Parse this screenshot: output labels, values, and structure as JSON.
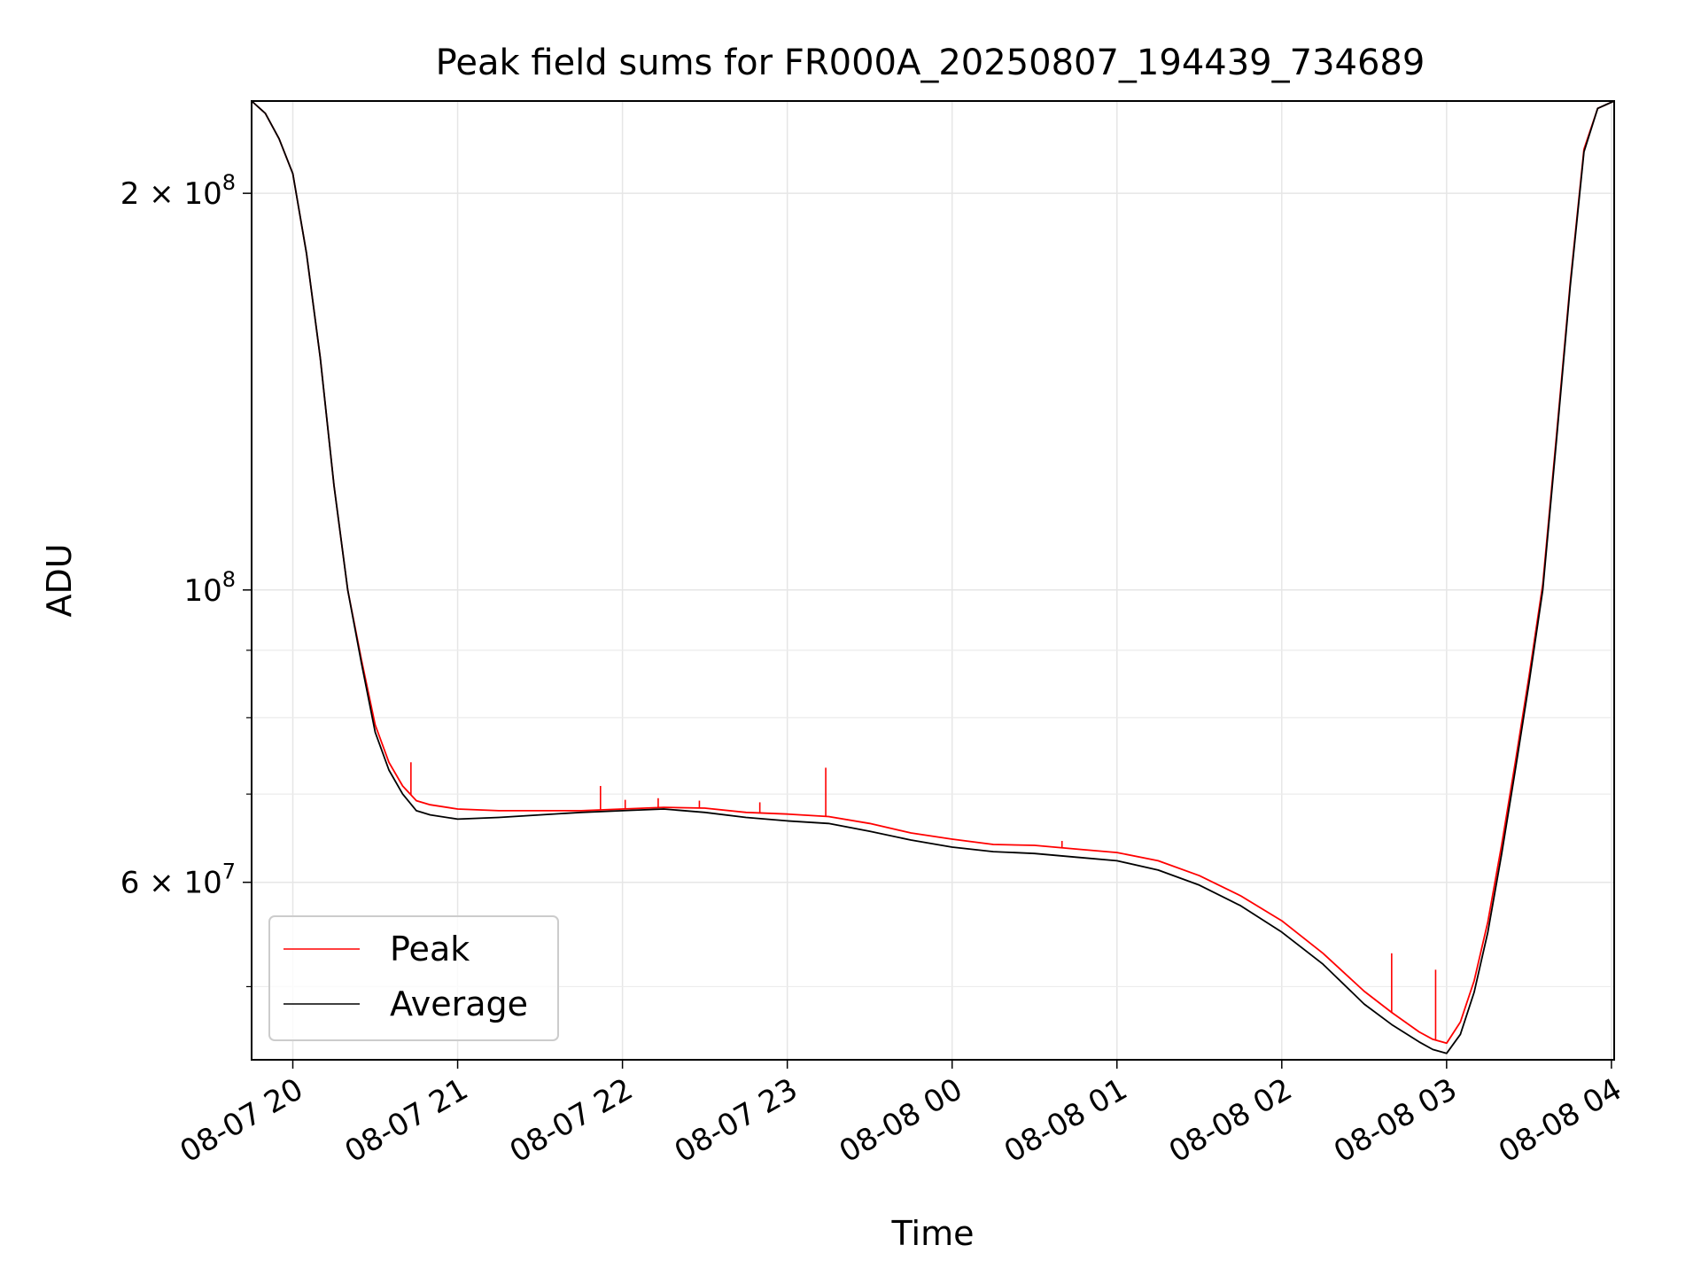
{
  "chart_data": {
    "type": "line",
    "title": "Peak field sums for FR000A_20250807_194439_734689",
    "xlabel": "Time",
    "ylabel": "ADU",
    "y_scale": "log",
    "xlim": [
      "2025-08-07T19:45",
      "2025-08-08T04:01"
    ],
    "ylim": [
      44000000,
      235000000
    ],
    "grid": true,
    "legend_position": "lower-left",
    "x_ticks": [
      {
        "value": "2025-08-07T20:00",
        "label": "08-07 20"
      },
      {
        "value": "2025-08-07T21:00",
        "label": "08-07 21"
      },
      {
        "value": "2025-08-07T22:00",
        "label": "08-07 22"
      },
      {
        "value": "2025-08-07T23:00",
        "label": "08-07 23"
      },
      {
        "value": "2025-08-08T00:00",
        "label": "08-08 00"
      },
      {
        "value": "2025-08-08T01:00",
        "label": "08-08 01"
      },
      {
        "value": "2025-08-08T02:00",
        "label": "08-08 02"
      },
      {
        "value": "2025-08-08T03:00",
        "label": "08-08 03"
      },
      {
        "value": "2025-08-08T04:00",
        "label": "08-08 04"
      }
    ],
    "y_ticks": [
      {
        "value": 60000000,
        "base": "6 × 10",
        "exp": "7"
      },
      {
        "value": 100000000,
        "base": "10",
        "exp": "8"
      },
      {
        "value": 200000000,
        "base": "2 × 10",
        "exp": "8"
      }
    ],
    "y_minor_ticks": [
      50000000,
      70000000,
      80000000,
      90000000
    ],
    "series": [
      {
        "name": "Average",
        "color": "#000000",
        "x": [
          "2025-08-07T19:45",
          "2025-08-07T19:50",
          "2025-08-07T19:55",
          "2025-08-07T20:00",
          "2025-08-07T20:05",
          "2025-08-07T20:10",
          "2025-08-07T20:15",
          "2025-08-07T20:20",
          "2025-08-07T20:25",
          "2025-08-07T20:30",
          "2025-08-07T20:35",
          "2025-08-07T20:40",
          "2025-08-07T20:45",
          "2025-08-07T20:50",
          "2025-08-07T21:00",
          "2025-08-07T21:15",
          "2025-08-07T21:30",
          "2025-08-07T21:45",
          "2025-08-07T22:00",
          "2025-08-07T22:15",
          "2025-08-07T22:30",
          "2025-08-07T22:45",
          "2025-08-07T23:00",
          "2025-08-07T23:15",
          "2025-08-07T23:30",
          "2025-08-07T23:45",
          "2025-08-08T00:00",
          "2025-08-08T00:15",
          "2025-08-08T00:30",
          "2025-08-08T00:45",
          "2025-08-08T01:00",
          "2025-08-08T01:15",
          "2025-08-08T01:30",
          "2025-08-08T01:45",
          "2025-08-08T02:00",
          "2025-08-08T02:15",
          "2025-08-08T02:30",
          "2025-08-08T02:40",
          "2025-08-08T02:50",
          "2025-08-08T02:55",
          "2025-08-08T03:00",
          "2025-08-08T03:05",
          "2025-08-08T03:10",
          "2025-08-08T03:15",
          "2025-08-08T03:20",
          "2025-08-08T03:25",
          "2025-08-08T03:30",
          "2025-08-08T03:35",
          "2025-08-08T03:40",
          "2025-08-08T03:45",
          "2025-08-08T03:50",
          "2025-08-08T03:55",
          "2025-08-08T04:01"
        ],
        "y": [
          235000000,
          230000000,
          220000000,
          207000000,
          180000000,
          150000000,
          120000000,
          100000000,
          88000000,
          78000000,
          73000000,
          70000000,
          68000000,
          67500000,
          67000000,
          67200000,
          67500000,
          67800000,
          68000000,
          68200000,
          67800000,
          67200000,
          66800000,
          66500000,
          65600000,
          64600000,
          63800000,
          63300000,
          63100000,
          62700000,
          62300000,
          61300000,
          59700000,
          57600000,
          55000000,
          52000000,
          48500000,
          46800000,
          45400000,
          44800000,
          44500000,
          46000000,
          49500000,
          55000000,
          63000000,
          73000000,
          85000000,
          100000000,
          130000000,
          170000000,
          215000000,
          232000000,
          235000000
        ]
      },
      {
        "name": "Peak",
        "color": "#ff0000",
        "x": [
          "2025-08-07T19:45",
          "2025-08-07T19:50",
          "2025-08-07T19:55",
          "2025-08-07T20:00",
          "2025-08-07T20:05",
          "2025-08-07T20:10",
          "2025-08-07T20:15",
          "2025-08-07T20:20",
          "2025-08-07T20:25",
          "2025-08-07T20:30",
          "2025-08-07T20:35",
          "2025-08-07T20:40",
          "2025-08-07T20:45",
          "2025-08-07T20:50",
          "2025-08-07T21:00",
          "2025-08-07T21:15",
          "2025-08-07T21:30",
          "2025-08-07T21:45",
          "2025-08-07T22:00",
          "2025-08-07T22:15",
          "2025-08-07T22:30",
          "2025-08-07T22:45",
          "2025-08-07T23:00",
          "2025-08-07T23:15",
          "2025-08-07T23:30",
          "2025-08-07T23:45",
          "2025-08-08T00:00",
          "2025-08-08T00:15",
          "2025-08-08T00:30",
          "2025-08-08T00:45",
          "2025-08-08T01:00",
          "2025-08-08T01:15",
          "2025-08-08T01:30",
          "2025-08-08T01:45",
          "2025-08-08T02:00",
          "2025-08-08T02:15",
          "2025-08-08T02:30",
          "2025-08-08T02:40",
          "2025-08-08T02:50",
          "2025-08-08T02:55",
          "2025-08-08T03:00",
          "2025-08-08T03:05",
          "2025-08-08T03:10",
          "2025-08-08T03:15",
          "2025-08-08T03:20",
          "2025-08-08T03:25",
          "2025-08-08T03:30",
          "2025-08-08T03:35",
          "2025-08-08T03:40",
          "2025-08-08T03:45",
          "2025-08-08T03:50",
          "2025-08-08T03:55",
          "2025-08-08T04:01"
        ],
        "y": [
          235000000,
          230000000,
          220000000,
          207000000,
          180000000,
          150000000,
          120000000,
          100000000,
          88500000,
          79000000,
          74000000,
          71000000,
          69200000,
          68700000,
          68200000,
          68000000,
          68000000,
          68000000,
          68200000,
          68400000,
          68300000,
          67800000,
          67600000,
          67300000,
          66500000,
          65400000,
          64700000,
          64100000,
          64000000,
          63600000,
          63200000,
          62300000,
          60700000,
          58600000,
          56100000,
          53000000,
          49600000,
          47800000,
          46200000,
          45600000,
          45300000,
          47000000,
          50500000,
          56000000,
          64000000,
          74000000,
          86000000,
          101000000,
          131000000,
          171000000,
          216000000,
          232000000,
          235000000
        ],
        "spikes": [
          {
            "x": "2025-08-07T20:43",
            "y": 74000000
          },
          {
            "x": "2025-08-07T21:52",
            "y": 71000000
          },
          {
            "x": "2025-08-07T22:01",
            "y": 69300000
          },
          {
            "x": "2025-08-07T22:13",
            "y": 69500000
          },
          {
            "x": "2025-08-07T22:28",
            "y": 69200000
          },
          {
            "x": "2025-08-07T22:50",
            "y": 69000000
          },
          {
            "x": "2025-08-07T23:14",
            "y": 73300000
          },
          {
            "x": "2025-08-08T00:40",
            "y": 64500000
          },
          {
            "x": "2025-08-08T02:40",
            "y": 53000000
          },
          {
            "x": "2025-08-08T02:56",
            "y": 51500000
          }
        ]
      }
    ],
    "legend": [
      {
        "label": "Peak",
        "color": "#ff0000"
      },
      {
        "label": "Average",
        "color": "#000000"
      }
    ]
  }
}
